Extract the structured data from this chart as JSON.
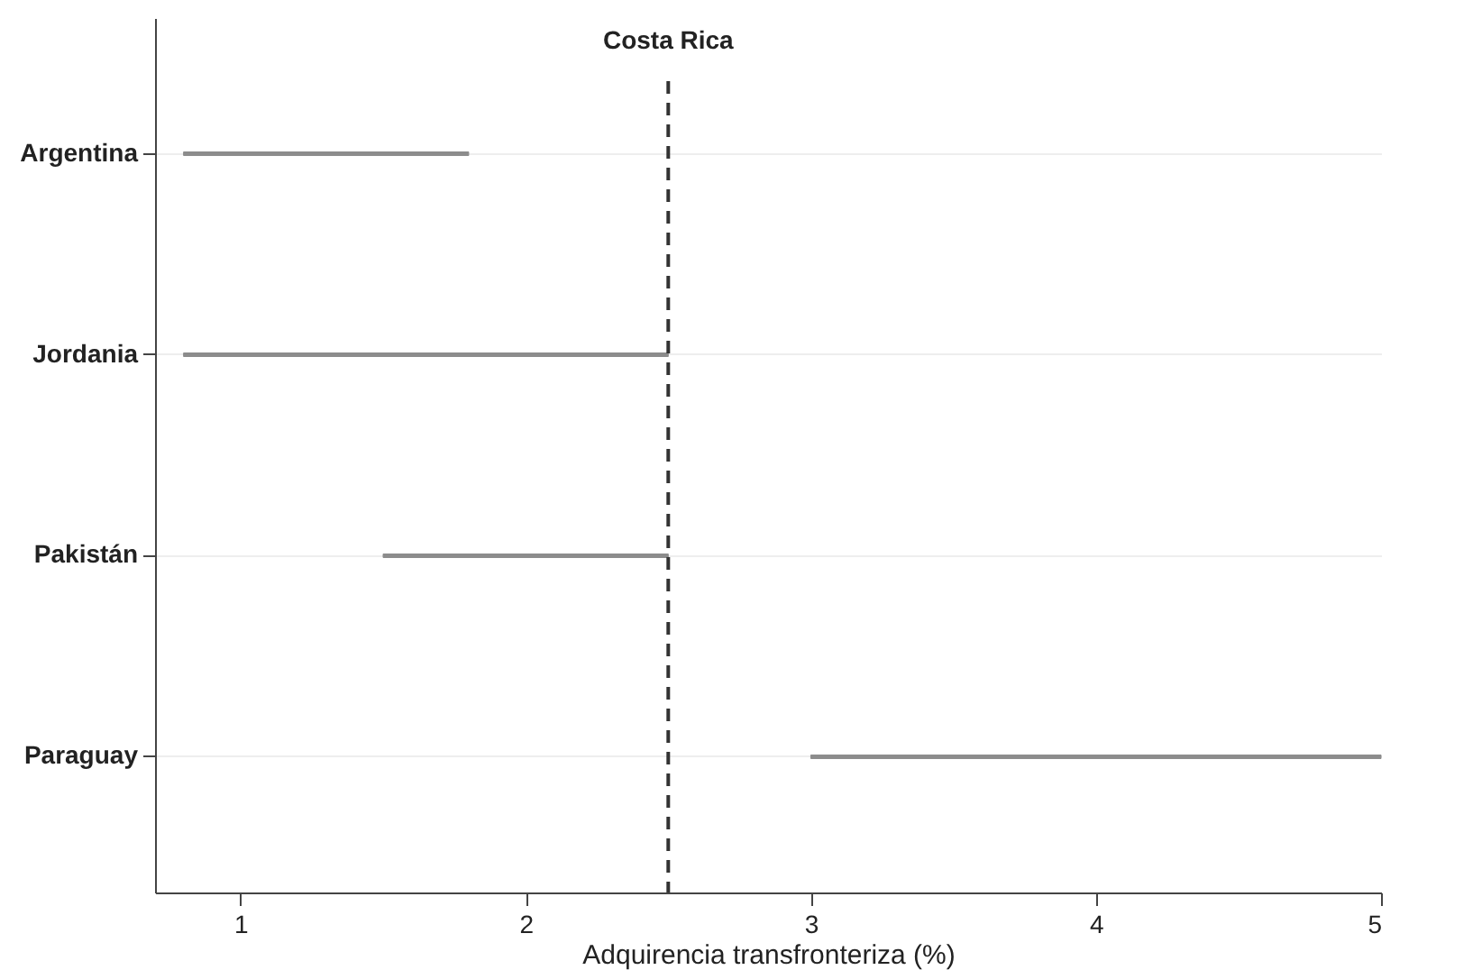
{
  "chart_data": {
    "type": "bar",
    "orientation": "horizontal",
    "xlabel": "Adquirencia transfronteriza (%)",
    "categories": [
      "Argentina",
      "Jordania",
      "Pakistán",
      "Paraguay"
    ],
    "base": [
      0.8,
      0.8,
      1.5,
      3.0
    ],
    "values": [
      1.0,
      1.7,
      1.0,
      2.0
    ],
    "color": "#8c8c8c",
    "xlim": [
      0.7,
      5
    ],
    "xticks": [
      1,
      2,
      3,
      4,
      5
    ],
    "ref_lines": [
      {
        "axis": "x",
        "value": 2.5,
        "label": "Costa Rica",
        "line_style": "dashed",
        "color": "#333333"
      }
    ],
    "grid": "y"
  }
}
